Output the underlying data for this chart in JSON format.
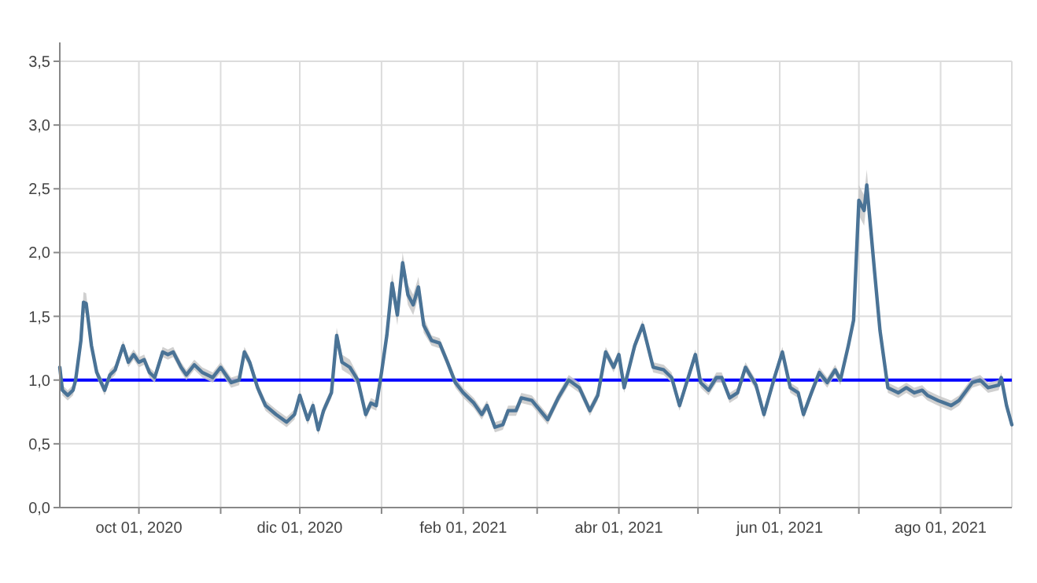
{
  "chart_data": {
    "type": "line",
    "x": [
      "2020-09-01",
      "2020-09-02",
      "2020-09-04",
      "2020-09-06",
      "2020-09-07",
      "2020-09-09",
      "2020-09-10",
      "2020-09-11",
      "2020-09-13",
      "2020-09-15",
      "2020-09-18",
      "2020-09-20",
      "2020-09-22",
      "2020-09-25",
      "2020-09-27",
      "2020-09-29",
      "2020-10-01",
      "2020-10-03",
      "2020-10-05",
      "2020-10-07",
      "2020-10-10",
      "2020-10-12",
      "2020-10-14",
      "2020-10-17",
      "2020-10-19",
      "2020-10-22",
      "2020-10-25",
      "2020-10-29",
      "2020-11-01",
      "2020-11-05",
      "2020-11-08",
      "2020-11-10",
      "2020-11-12",
      "2020-11-15",
      "2020-11-18",
      "2020-11-22",
      "2020-11-26",
      "2020-11-29",
      "2020-12-01",
      "2020-12-04",
      "2020-12-06",
      "2020-12-08",
      "2020-12-10",
      "2020-12-13",
      "2020-12-15",
      "2020-12-17",
      "2020-12-20",
      "2020-12-23",
      "2020-12-26",
      "2020-12-28",
      "2020-12-30",
      "2021-01-01",
      "2021-01-03",
      "2021-01-05",
      "2021-01-07",
      "2021-01-09",
      "2021-01-11",
      "2021-01-13",
      "2021-01-15",
      "2021-01-17",
      "2021-01-20",
      "2021-01-23",
      "2021-01-26",
      "2021-01-29",
      "2021-02-01",
      "2021-02-05",
      "2021-02-08",
      "2021-02-10",
      "2021-02-13",
      "2021-02-16",
      "2021-02-18",
      "2021-02-21",
      "2021-02-23",
      "2021-02-27",
      "2021-03-05",
      "2021-03-09",
      "2021-03-13",
      "2021-03-17",
      "2021-03-21",
      "2021-03-24",
      "2021-03-27",
      "2021-03-30",
      "2021-04-01",
      "2021-04-03",
      "2021-04-07",
      "2021-04-10",
      "2021-04-14",
      "2021-04-18",
      "2021-04-21",
      "2021-04-24",
      "2021-04-27",
      "2021-04-30",
      "2021-05-02",
      "2021-05-05",
      "2021-05-08",
      "2021-05-10",
      "2021-05-13",
      "2021-05-16",
      "2021-05-19",
      "2021-05-23",
      "2021-05-26",
      "2021-05-30",
      "2021-06-02",
      "2021-06-05",
      "2021-06-08",
      "2021-06-10",
      "2021-06-13",
      "2021-06-16",
      "2021-06-19",
      "2021-06-22",
      "2021-06-24",
      "2021-06-27",
      "2021-06-29",
      "2021-07-01",
      "2021-07-03",
      "2021-07-04",
      "2021-07-07",
      "2021-07-09",
      "2021-07-12",
      "2021-07-16",
      "2021-07-19",
      "2021-07-22",
      "2021-07-25",
      "2021-07-27",
      "2021-07-31",
      "2021-08-05",
      "2021-08-08",
      "2021-08-13",
      "2021-08-16",
      "2021-08-19",
      "2021-08-23",
      "2021-08-24",
      "2021-08-26",
      "2021-08-28"
    ],
    "series": [
      {
        "color": "#4a7396",
        "values": [
          1.1,
          0.92,
          0.88,
          0.92,
          1.0,
          1.31,
          1.61,
          1.6,
          1.27,
          1.06,
          0.92,
          1.04,
          1.08,
          1.27,
          1.14,
          1.2,
          1.14,
          1.16,
          1.06,
          1.02,
          1.22,
          1.2,
          1.22,
          1.1,
          1.04,
          1.12,
          1.06,
          1.02,
          1.1,
          0.98,
          1.0,
          1.22,
          1.14,
          0.94,
          0.8,
          0.73,
          0.67,
          0.73,
          0.88,
          0.69,
          0.8,
          0.61,
          0.76,
          0.9,
          1.35,
          1.14,
          1.1,
          1.0,
          0.73,
          0.82,
          0.8,
          1.06,
          1.35,
          1.76,
          1.51,
          1.92,
          1.67,
          1.59,
          1.73,
          1.43,
          1.31,
          1.29,
          1.14,
          0.98,
          0.9,
          0.82,
          0.73,
          0.8,
          0.63,
          0.65,
          0.76,
          0.76,
          0.86,
          0.84,
          0.69,
          0.86,
          1.0,
          0.94,
          0.76,
          0.88,
          1.22,
          1.1,
          1.2,
          0.94,
          1.27,
          1.43,
          1.1,
          1.08,
          1.02,
          0.8,
          1.0,
          1.2,
          0.98,
          0.92,
          1.02,
          1.02,
          0.86,
          0.9,
          1.1,
          0.96,
          0.73,
          1.02,
          1.22,
          0.94,
          0.9,
          0.73,
          0.9,
          1.06,
          0.98,
          1.08,
          1.0,
          1.27,
          1.47,
          2.41,
          2.33,
          2.53,
          1.84,
          1.39,
          0.94,
          0.9,
          0.94,
          0.9,
          0.92,
          0.88,
          0.84,
          0.8,
          0.84,
          0.98,
          1.0,
          0.94,
          0.96,
          1.02,
          0.8,
          0.65
        ],
        "lower": [
          1.06,
          0.88,
          0.84,
          0.88,
          0.96,
          1.27,
          1.53,
          1.52,
          1.23,
          1.02,
          0.88,
          1.0,
          1.04,
          1.23,
          1.1,
          1.16,
          1.1,
          1.12,
          1.02,
          0.98,
          1.18,
          1.16,
          1.18,
          1.06,
          1.0,
          1.08,
          1.02,
          0.98,
          1.06,
          0.94,
          0.96,
          1.18,
          1.1,
          0.9,
          0.76,
          0.69,
          0.63,
          0.69,
          0.84,
          0.65,
          0.76,
          0.57,
          0.72,
          0.86,
          1.29,
          1.08,
          1.04,
          0.96,
          0.69,
          0.78,
          0.76,
          1.02,
          1.29,
          1.68,
          1.43,
          1.84,
          1.59,
          1.51,
          1.65,
          1.37,
          1.27,
          1.25,
          1.1,
          0.94,
          0.86,
          0.78,
          0.69,
          0.76,
          0.59,
          0.61,
          0.72,
          0.72,
          0.82,
          0.8,
          0.65,
          0.82,
          0.96,
          0.9,
          0.72,
          0.84,
          1.18,
          1.06,
          1.16,
          0.9,
          1.23,
          1.39,
          1.06,
          1.04,
          0.98,
          0.76,
          0.96,
          1.16,
          0.94,
          0.88,
          0.98,
          0.98,
          0.82,
          0.86,
          1.06,
          0.92,
          0.69,
          0.98,
          1.18,
          0.9,
          0.86,
          0.69,
          0.86,
          1.02,
          0.94,
          1.04,
          0.96,
          1.23,
          1.43,
          2.29,
          2.21,
          2.41,
          1.76,
          1.35,
          0.9,
          0.86,
          0.9,
          0.86,
          0.88,
          0.84,
          0.8,
          0.76,
          0.8,
          0.94,
          0.96,
          0.9,
          0.92,
          0.98,
          0.76,
          0.61
        ],
        "upper": [
          1.14,
          0.96,
          0.92,
          0.96,
          1.04,
          1.35,
          1.69,
          1.68,
          1.31,
          1.1,
          0.96,
          1.08,
          1.12,
          1.31,
          1.18,
          1.24,
          1.18,
          1.2,
          1.1,
          1.06,
          1.26,
          1.24,
          1.26,
          1.14,
          1.08,
          1.16,
          1.1,
          1.06,
          1.14,
          1.02,
          1.04,
          1.26,
          1.18,
          0.98,
          0.84,
          0.77,
          0.71,
          0.77,
          0.92,
          0.73,
          0.84,
          0.65,
          0.8,
          0.94,
          1.41,
          1.2,
          1.16,
          1.04,
          0.77,
          0.86,
          0.84,
          1.1,
          1.41,
          1.84,
          1.59,
          2.0,
          1.75,
          1.67,
          1.81,
          1.49,
          1.35,
          1.33,
          1.18,
          1.02,
          0.94,
          0.86,
          0.77,
          0.84,
          0.67,
          0.69,
          0.8,
          0.8,
          0.9,
          0.88,
          0.73,
          0.9,
          1.04,
          0.98,
          0.8,
          0.92,
          1.26,
          1.14,
          1.24,
          0.98,
          1.31,
          1.47,
          1.14,
          1.12,
          1.06,
          0.84,
          1.04,
          1.24,
          1.02,
          0.96,
          1.06,
          1.06,
          0.9,
          0.94,
          1.14,
          1.0,
          0.77,
          1.06,
          1.26,
          0.98,
          0.94,
          0.77,
          0.94,
          1.1,
          1.02,
          1.12,
          1.04,
          1.31,
          1.51,
          2.53,
          2.45,
          2.65,
          1.92,
          1.43,
          0.98,
          0.94,
          0.98,
          0.94,
          0.96,
          0.92,
          0.88,
          0.84,
          0.88,
          1.02,
          1.04,
          0.98,
          1.0,
          1.06,
          0.84,
          0.69
        ]
      }
    ],
    "xlim": [
      "2020-09-01",
      "2021-08-28"
    ],
    "xticks": [
      {
        "value": "2020-10-01",
        "label": "oct 01, 2020"
      },
      {
        "value": "2020-11-01",
        "label": null
      },
      {
        "value": "2020-12-01",
        "label": "dic 01, 2020"
      },
      {
        "value": "2021-01-01",
        "label": null
      },
      {
        "value": "2021-02-01",
        "label": "feb 01, 2021"
      },
      {
        "value": "2021-03-01",
        "label": null
      },
      {
        "value": "2021-04-01",
        "label": "abr 01, 2021"
      },
      {
        "value": "2021-05-01",
        "label": null
      },
      {
        "value": "2021-06-01",
        "label": "jun 01, 2021"
      },
      {
        "value": "2021-07-01",
        "label": null
      },
      {
        "value": "2021-08-01",
        "label": "ago 01, 2021"
      }
    ],
    "ylim": [
      0,
      3.5
    ],
    "yticks": [
      {
        "value": 0,
        "label": "0,0"
      },
      {
        "value": 0.5,
        "label": "0,5"
      },
      {
        "value": 1,
        "label": "1,0"
      },
      {
        "value": 1.5,
        "label": "1,5"
      },
      {
        "value": 2,
        "label": "2,0"
      },
      {
        "value": 2.5,
        "label": "2,5"
      },
      {
        "value": 3,
        "label": "3,0"
      },
      {
        "value": 3.5,
        "label": "3,5"
      }
    ],
    "ref_lines": [
      {
        "axis": "y",
        "value": 1,
        "color": "#0000ff"
      }
    ],
    "grid": true,
    "marker": "none",
    "line_style": "solid"
  }
}
